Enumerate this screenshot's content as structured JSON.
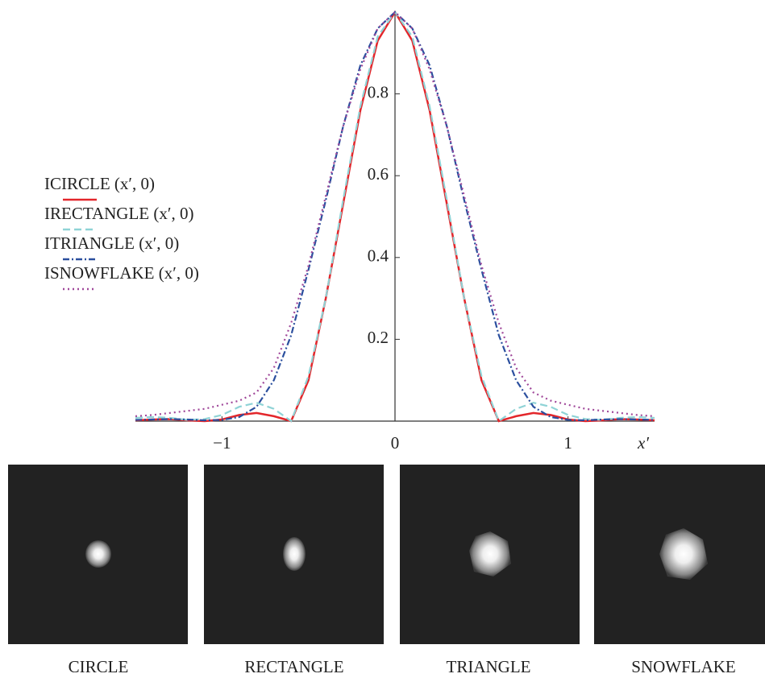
{
  "chart_data": {
    "type": "line",
    "x": [
      -1.5,
      -1.4,
      -1.3,
      -1.2,
      -1.1,
      -1.0,
      -0.9,
      -0.8,
      -0.7,
      -0.6,
      -0.5,
      -0.4,
      -0.3,
      -0.2,
      -0.1,
      0,
      0.1,
      0.2,
      0.3,
      0.4,
      0.5,
      0.6,
      0.7,
      0.8,
      0.9,
      1.0,
      1.1,
      1.2,
      1.3,
      1.4,
      1.5
    ],
    "xlim": [
      -1.5,
      1.5
    ],
    "ylim": [
      0,
      1
    ],
    "xticks": [
      {
        "value": -1,
        "label": "−1"
      },
      0,
      1
    ],
    "yticks": [
      0.2,
      0.4,
      0.6,
      0.8
    ],
    "x_label": "x′",
    "series": [
      {
        "name": "ICIRCLE (x′, 0)",
        "color": "#e3262b",
        "style": "solid",
        "values": [
          0.002,
          0.004,
          0.005,
          0.002,
          0,
          0.004,
          0.015,
          0.02,
          0.012,
          0,
          0.1,
          0.3,
          0.53,
          0.76,
          0.93,
          1,
          0.93,
          0.76,
          0.53,
          0.3,
          0.1,
          0,
          0.012,
          0.02,
          0.015,
          0.004,
          0,
          0.002,
          0.005,
          0.004,
          0.002
        ]
      },
      {
        "name": "IRECTANGLE (x′, 0)",
        "color": "#8fd3d6",
        "style": "dashed",
        "values": [
          0.008,
          0.01,
          0.008,
          0.003,
          0.005,
          0.015,
          0.035,
          0.045,
          0.03,
          0,
          0.11,
          0.3,
          0.54,
          0.77,
          0.94,
          1,
          0.94,
          0.77,
          0.54,
          0.3,
          0.11,
          0,
          0.03,
          0.045,
          0.035,
          0.015,
          0.005,
          0.003,
          0.008,
          0.01,
          0.008
        ]
      },
      {
        "name": "ITRIANGLE (x′, 0)",
        "color": "#2b4f9e",
        "style": "dashdot",
        "values": [
          0.003,
          0.004,
          0.005,
          0.004,
          0.002,
          0.003,
          0.01,
          0.035,
          0.1,
          0.21,
          0.37,
          0.54,
          0.72,
          0.87,
          0.96,
          1,
          0.96,
          0.87,
          0.72,
          0.54,
          0.37,
          0.21,
          0.1,
          0.035,
          0.01,
          0.003,
          0.002,
          0.004,
          0.005,
          0.004,
          0.003
        ]
      },
      {
        "name": "ISNOWFLAKE (x′, 0)",
        "color": "#a0489a",
        "style": "dotted",
        "values": [
          0.012,
          0.015,
          0.02,
          0.025,
          0.03,
          0.04,
          0.05,
          0.07,
          0.13,
          0.24,
          0.38,
          0.55,
          0.72,
          0.86,
          0.96,
          1,
          0.96,
          0.86,
          0.72,
          0.55,
          0.38,
          0.24,
          0.13,
          0.07,
          0.05,
          0.04,
          0.03,
          0.025,
          0.02,
          0.015,
          0.012
        ]
      }
    ]
  },
  "images": {
    "labels": [
      "CIRCLE",
      "RECTANGLE",
      "TRIANGLE",
      "SNOWFLAKE"
    ]
  }
}
